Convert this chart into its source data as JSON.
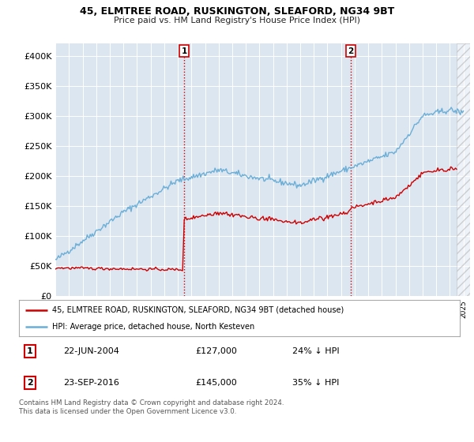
{
  "title": "45, ELMTREE ROAD, RUSKINGTON, SLEAFORD, NG34 9BT",
  "subtitle": "Price paid vs. HM Land Registry's House Price Index (HPI)",
  "legend_line1": "45, ELMTREE ROAD, RUSKINGTON, SLEAFORD, NG34 9BT (detached house)",
  "legend_line2": "HPI: Average price, detached house, North Kesteven",
  "annotation1_label": "1",
  "annotation1_date": "22-JUN-2004",
  "annotation1_price": "£127,000",
  "annotation1_pct": "24% ↓ HPI",
  "annotation1_year": 2004.47,
  "annotation2_label": "2",
  "annotation2_date": "23-SEP-2016",
  "annotation2_price": "£145,000",
  "annotation2_pct": "35% ↓ HPI",
  "annotation2_year": 2016.72,
  "footnote": "Contains HM Land Registry data © Crown copyright and database right 2024.\nThis data is licensed under the Open Government Licence v3.0.",
  "hpi_color": "#6baed6",
  "price_color": "#cc0000",
  "vline_color": "#cc0000",
  "background_color": "#ffffff",
  "plot_bg_color": "#dce6f1",
  "ylim": [
    0,
    420000
  ],
  "yticks": [
    0,
    50000,
    100000,
    150000,
    200000,
    250000,
    300000,
    350000,
    400000
  ],
  "ytick_labels": [
    "£0",
    "£50K",
    "£100K",
    "£150K",
    "£200K",
    "£250K",
    "£300K",
    "£350K",
    "£400K"
  ],
  "xlim_start": 1995,
  "xlim_end": 2025.5,
  "hatch_start": 2024.5
}
